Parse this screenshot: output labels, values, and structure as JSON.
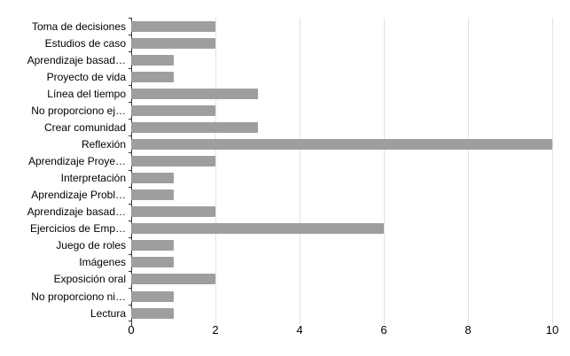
{
  "chart_data": {
    "type": "bar",
    "orientation": "horizontal",
    "title": "",
    "xlabel": "",
    "ylabel": "",
    "categories": [
      "Toma de decisiones",
      "Estudios de caso",
      "Aprendizaje basad…",
      "Proyecto de vida",
      "Línea del tiempo",
      "No proporciono ej…",
      "Crear comunidad",
      "Reflexión",
      "Aprendizaje Proye…",
      "Interpretación",
      "Aprendizaje Probl…",
      "Aprendizaje basad…",
      "Ejercicios de Emp…",
      "Juego de roles",
      "Imágenes",
      "Exposición oral",
      "No proporciono ni…",
      "Lectura"
    ],
    "values": [
      2,
      2,
      1,
      1,
      3,
      2,
      3,
      10,
      2,
      1,
      1,
      2,
      6,
      1,
      1,
      2,
      1,
      1
    ],
    "xlim": [
      0,
      10
    ],
    "x_ticks": [
      0,
      2,
      4,
      6,
      8,
      10
    ],
    "grid": true,
    "legend": "none",
    "colors": {
      "bar": "#9e9e9e",
      "gridline": "#e3e3e3",
      "axis": "#333333",
      "text": "#000000",
      "background": "#ffffff"
    }
  }
}
